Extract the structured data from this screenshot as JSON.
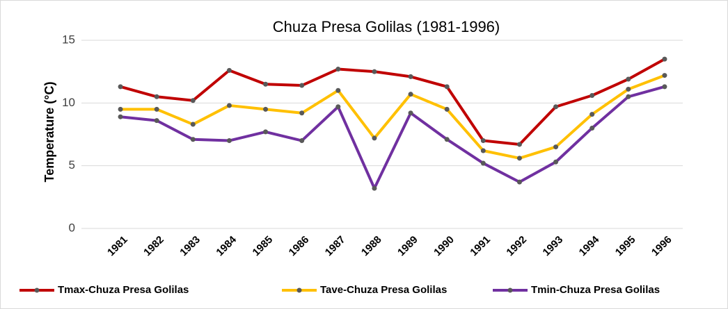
{
  "chart_data": {
    "type": "line",
    "title": "Chuza Presa Golilas (1981-1996)",
    "y_label": "Temperature (°C)",
    "categories": [
      "1981",
      "1982",
      "1983",
      "1984",
      "1985",
      "1986",
      "1987",
      "1988",
      "1989",
      "1990",
      "1991",
      "1992",
      "1993",
      "1994",
      "1995",
      "1996"
    ],
    "series": [
      {
        "name": "Tmax-Chuza Presa Golilas",
        "color": "#c00000",
        "values": [
          11.3,
          10.5,
          10.2,
          12.6,
          11.5,
          11.4,
          12.7,
          12.5,
          12.1,
          11.3,
          7.0,
          6.7,
          9.7,
          10.6,
          11.9,
          13.5
        ]
      },
      {
        "name": "Tave-Chuza Presa Golilas",
        "color": "#ffc000",
        "values": [
          9.5,
          9.5,
          8.3,
          9.8,
          9.5,
          9.2,
          11.0,
          7.2,
          10.7,
          9.5,
          6.2,
          5.6,
          6.5,
          9.1,
          11.1,
          12.2
        ]
      },
      {
        "name": "Tmin-Chuza Presa Golilas",
        "color": "#7030a0",
        "values": [
          8.9,
          8.6,
          7.1,
          7.0,
          7.7,
          7.0,
          9.7,
          3.2,
          9.2,
          7.1,
          5.2,
          3.7,
          5.3,
          8.0,
          10.5,
          11.3
        ]
      }
    ],
    "marker_color": "#595959",
    "ylim": [
      0,
      15
    ],
    "yticks": [
      0,
      5,
      10,
      15
    ],
    "grid": true,
    "legend": "bottom"
  }
}
